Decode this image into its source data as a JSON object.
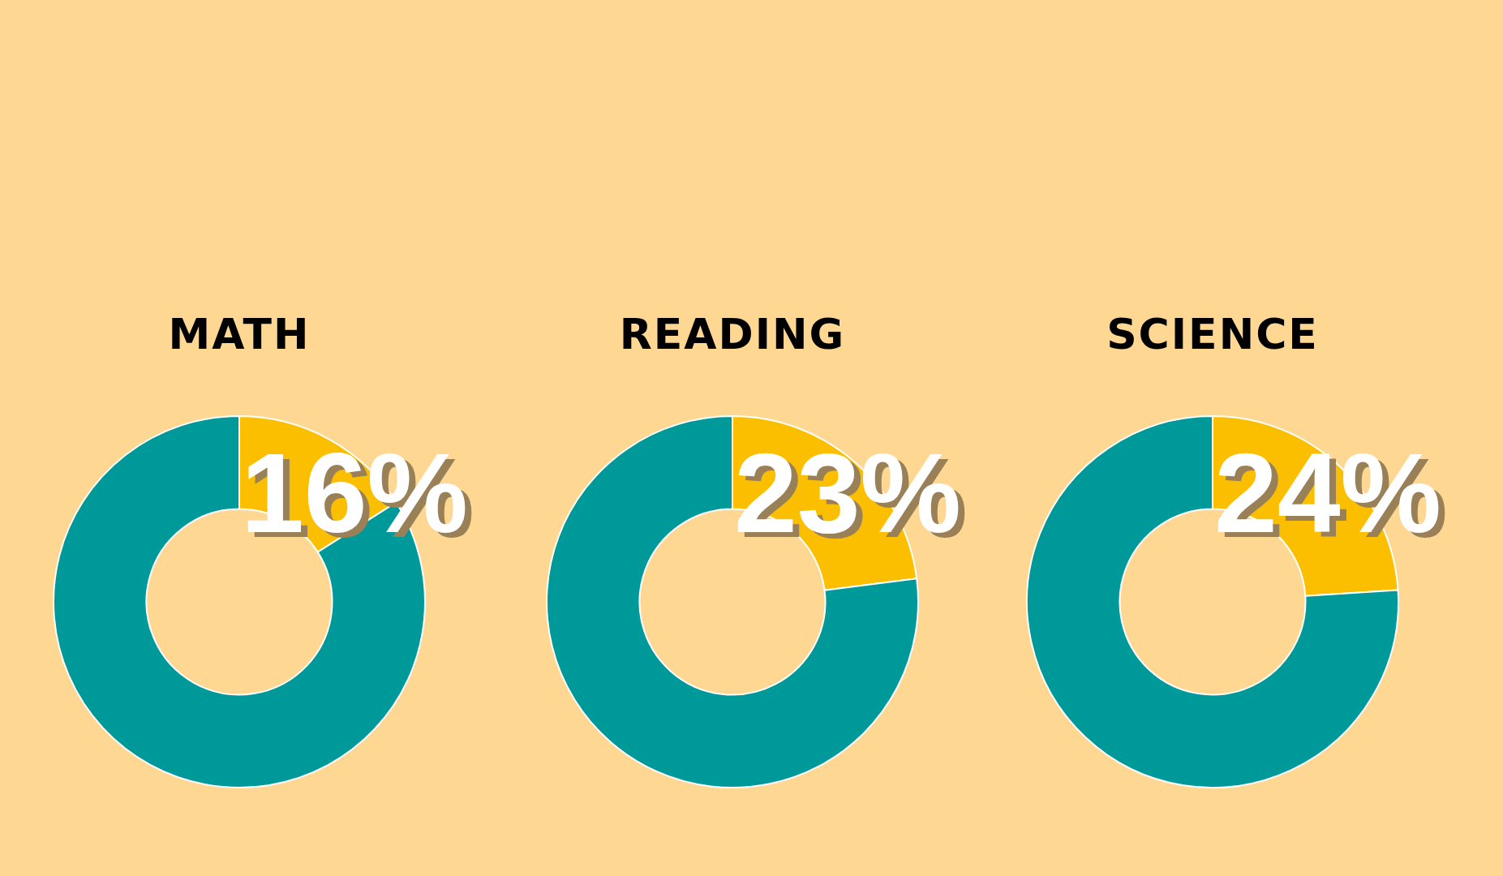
{
  "chart_data": [
    {
      "type": "donut",
      "title": "MATH",
      "categories": [
        null,
        null
      ],
      "values": [
        16,
        84
      ],
      "colors": [
        "#fbbf00",
        "#009999"
      ],
      "value_labels": [
        "16%",
        null
      ]
    },
    {
      "type": "donut",
      "title": "READING",
      "categories": [
        null,
        null
      ],
      "values": [
        23,
        77
      ],
      "colors": [
        "#fbbf00",
        "#009999"
      ],
      "value_labels": [
        "23%",
        null
      ]
    },
    {
      "type": "donut",
      "title": "SCIENCE",
      "categories": [
        null,
        null
      ],
      "values": [
        24,
        76
      ],
      "colors": [
        "#fbbf00",
        "#009999"
      ],
      "value_labels": [
        "24%",
        null
      ]
    }
  ]
}
